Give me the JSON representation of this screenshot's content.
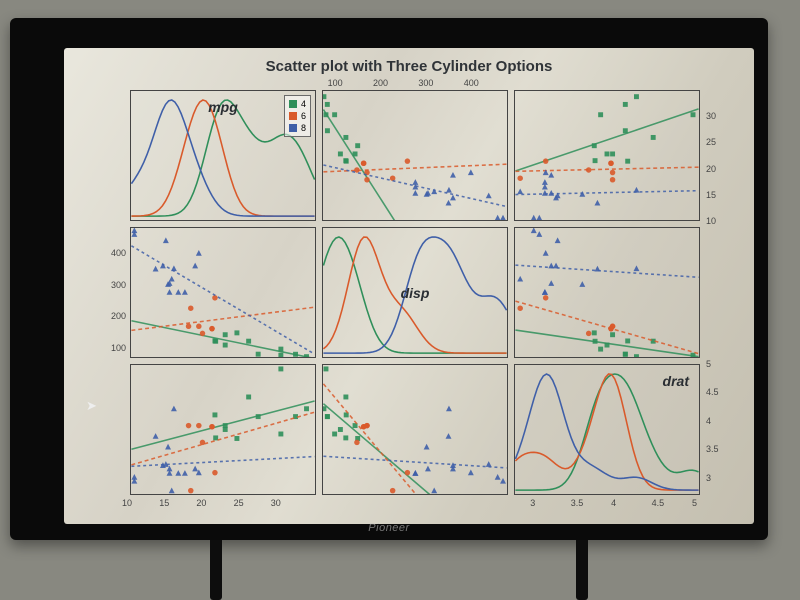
{
  "title": "Scatter plot with Three Cylinder Options",
  "brand": "Pioneer",
  "variables": [
    "mpg",
    "disp",
    "drat"
  ],
  "legend": {
    "title": "",
    "items": [
      {
        "label": "4",
        "color": "#2f8f5a"
      },
      {
        "label": "6",
        "color": "#d95a2b"
      },
      {
        "label": "8",
        "color": "#3f5fa8"
      }
    ]
  },
  "colors": {
    "series_4": "#2f8f5a",
    "series_6": "#d95a2b",
    "series_8": "#3f5fa8",
    "panel_border": "#444444",
    "background": "#e0ddd1",
    "text": "#2d3033"
  },
  "ranges": {
    "mpg": {
      "min": 10,
      "max": 35
    },
    "disp": {
      "min": 70,
      "max": 480
    },
    "drat": {
      "min": 2.7,
      "max": 5.0
    }
  },
  "axes": {
    "mpg_bottom": {
      "ticks": [
        10,
        15,
        20,
        25,
        30
      ]
    },
    "disp_top": {
      "ticks": [
        100,
        200,
        300,
        400
      ]
    },
    "drat_bottom": {
      "ticks": [
        3.0,
        3.5,
        4.0,
        4.5,
        5.0
      ]
    },
    "mpg_right": {
      "ticks": [
        10,
        15,
        20,
        25,
        30
      ]
    },
    "disp_left": {
      "ticks": [
        100,
        200,
        300,
        400
      ]
    },
    "drat_right": {
      "ticks": [
        3.0,
        3.5,
        4.0,
        4.5,
        5.0
      ]
    }
  },
  "marker": {
    "4": {
      "shape": "square",
      "size": 5
    },
    "6": {
      "shape": "circle",
      "size": 5
    },
    "8": {
      "shape": "triangle",
      "size": 6
    }
  },
  "line_style": {
    "width": 1.6,
    "dash_6": "4,3",
    "dash_8": "3,3"
  },
  "data": [
    {
      "cyl": 4,
      "mpg": 22.8,
      "disp": 108.0,
      "drat": 3.85
    },
    {
      "cyl": 4,
      "mpg": 24.4,
      "disp": 146.7,
      "drat": 3.69
    },
    {
      "cyl": 4,
      "mpg": 22.8,
      "disp": 140.8,
      "drat": 3.92
    },
    {
      "cyl": 4,
      "mpg": 32.4,
      "disp": 78.7,
      "drat": 4.08
    },
    {
      "cyl": 4,
      "mpg": 30.4,
      "disp": 75.7,
      "drat": 4.93
    },
    {
      "cyl": 4,
      "mpg": 33.9,
      "disp": 71.1,
      "drat": 4.22
    },
    {
      "cyl": 4,
      "mpg": 21.5,
      "disp": 120.1,
      "drat": 3.7
    },
    {
      "cyl": 4,
      "mpg": 27.3,
      "disp": 79.0,
      "drat": 4.08
    },
    {
      "cyl": 4,
      "mpg": 26.0,
      "disp": 120.3,
      "drat": 4.43
    },
    {
      "cyl": 4,
      "mpg": 30.4,
      "disp": 95.1,
      "drat": 3.77
    },
    {
      "cyl": 4,
      "mpg": 21.4,
      "disp": 121.0,
      "drat": 4.11
    },
    {
      "cyl": 6,
      "mpg": 21.0,
      "disp": 160.0,
      "drat": 3.9
    },
    {
      "cyl": 6,
      "mpg": 21.0,
      "disp": 160.0,
      "drat": 3.9
    },
    {
      "cyl": 6,
      "mpg": 21.4,
      "disp": 258.0,
      "drat": 3.08
    },
    {
      "cyl": 6,
      "mpg": 18.1,
      "disp": 225.0,
      "drat": 2.76
    },
    {
      "cyl": 6,
      "mpg": 19.2,
      "disp": 167.6,
      "drat": 3.92
    },
    {
      "cyl": 6,
      "mpg": 17.8,
      "disp": 167.6,
      "drat": 3.92
    },
    {
      "cyl": 6,
      "mpg": 19.7,
      "disp": 145.0,
      "drat": 3.62
    },
    {
      "cyl": 8,
      "mpg": 18.7,
      "disp": 360.0,
      "drat": 3.15
    },
    {
      "cyl": 8,
      "mpg": 14.3,
      "disp": 360.0,
      "drat": 3.21
    },
    {
      "cyl": 8,
      "mpg": 16.4,
      "disp": 275.8,
      "drat": 3.07
    },
    {
      "cyl": 8,
      "mpg": 17.3,
      "disp": 275.8,
      "drat": 3.07
    },
    {
      "cyl": 8,
      "mpg": 15.2,
      "disp": 275.8,
      "drat": 3.07
    },
    {
      "cyl": 8,
      "mpg": 10.4,
      "disp": 472.0,
      "drat": 2.93
    },
    {
      "cyl": 8,
      "mpg": 10.4,
      "disp": 460.0,
      "drat": 3.0
    },
    {
      "cyl": 8,
      "mpg": 14.7,
      "disp": 440.0,
      "drat": 3.23
    },
    {
      "cyl": 8,
      "mpg": 15.5,
      "disp": 318.0,
      "drat": 2.76
    },
    {
      "cyl": 8,
      "mpg": 15.2,
      "disp": 304.0,
      "drat": 3.15
    },
    {
      "cyl": 8,
      "mpg": 13.3,
      "disp": 350.0,
      "drat": 3.73
    },
    {
      "cyl": 8,
      "mpg": 19.2,
      "disp": 400.0,
      "drat": 3.08
    },
    {
      "cyl": 8,
      "mpg": 15.8,
      "disp": 351.0,
      "drat": 4.22
    },
    {
      "cyl": 8,
      "mpg": 15.0,
      "disp": 301.0,
      "drat": 3.54
    }
  ]
}
